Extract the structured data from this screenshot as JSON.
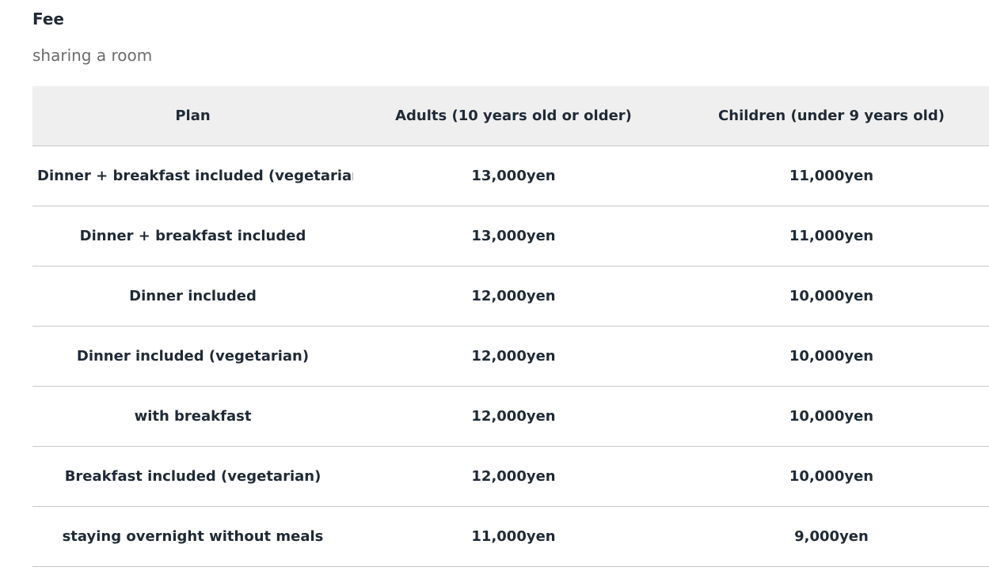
{
  "fee": {
    "title": "Fee",
    "subtitle": "sharing a room",
    "table": {
      "headers": {
        "plan": "Plan",
        "adults": "Adults (10 years old or older)",
        "children": "Children (under 9 years old)"
      },
      "rows": [
        {
          "plan": "Dinner + breakfast included (vegetarian)",
          "adults": "13,000yen",
          "children": "11,000yen"
        },
        {
          "plan": "Dinner + breakfast included",
          "adults": "13,000yen",
          "children": "11,000yen"
        },
        {
          "plan": "Dinner included",
          "adults": "12,000yen",
          "children": "10,000yen"
        },
        {
          "plan": "Dinner included (vegetarian)",
          "adults": "12,000yen",
          "children": "10,000yen"
        },
        {
          "plan": "with breakfast",
          "adults": "12,000yen",
          "children": "10,000yen"
        },
        {
          "plan": "Breakfast included (vegetarian)",
          "adults": "12,000yen",
          "children": "10,000yen"
        },
        {
          "plan": "staying overnight without meals",
          "adults": "11,000yen",
          "children": "9,000yen"
        }
      ]
    }
  }
}
